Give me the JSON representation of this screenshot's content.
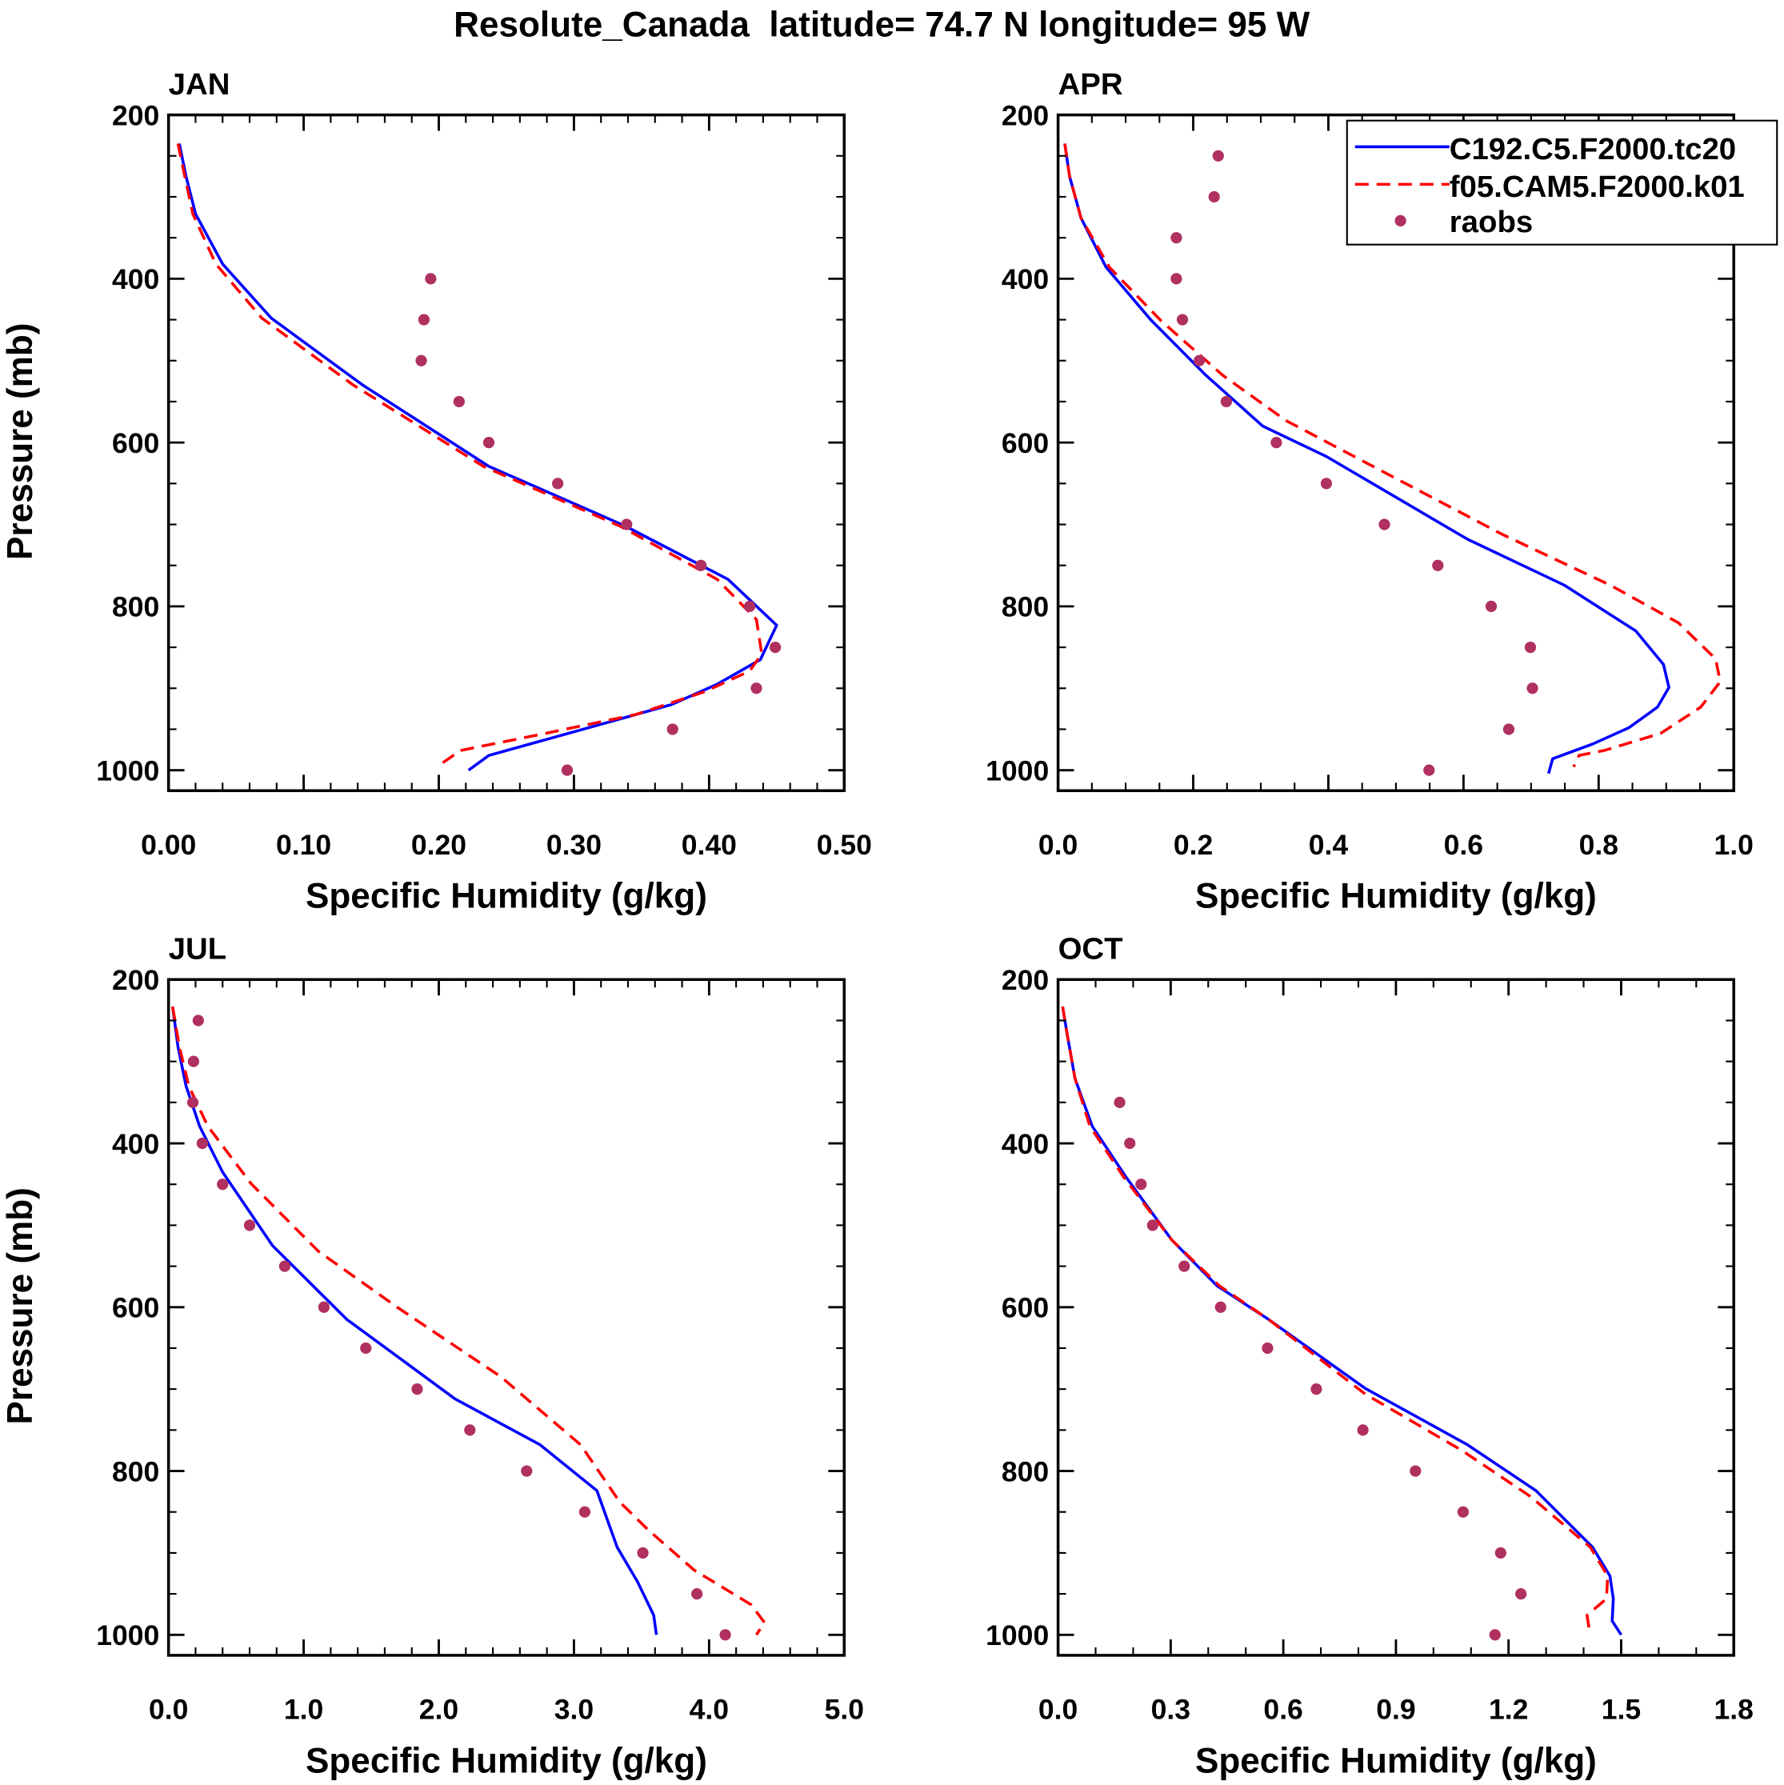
{
  "chart_data": {
    "title": "Resolute_Canada  latitude= 74.7 N longitude= 95 W",
    "legend": {
      "placement": "top-right of APR panel",
      "entries": [
        {
          "name": "C192.C5.F2000.tc20",
          "style": "solid",
          "color": "#0000ff"
        },
        {
          "name": "f05.CAM5.F2000.k01",
          "style": "dashed",
          "color": "#ff0000"
        },
        {
          "name": "raobs",
          "style": "marker",
          "color": "#b03060"
        }
      ]
    },
    "panels": [
      {
        "type": "line",
        "title": "JAN",
        "xlabel": "Specific Humidity (g/kg)",
        "ylabel": "Pressure (mb)",
        "xlim": [
          0,
          0.5
        ],
        "xminor": 0.02,
        "xticks": [
          0,
          0.1,
          0.2,
          0.3,
          0.4,
          0.5
        ],
        "xticklabels": [
          "0.00",
          "0.10",
          "0.20",
          "0.30",
          "0.40",
          "0.50"
        ],
        "ylim": [
          200,
          1025
        ],
        "yticks": [
          200,
          400,
          600,
          800,
          1000
        ],
        "yticklabels": [
          "200",
          "400",
          "600",
          "800",
          "1000"
        ],
        "series": [
          {
            "name": "C192.C5.F2000.tc20",
            "x": [
              0.008,
              0.013,
              0.02,
              0.04,
              0.076,
              0.143,
              0.237,
              0.338,
              0.414,
              0.45,
              0.438,
              0.406,
              0.372,
              0.296,
              0.237,
              0.222
            ],
            "p": [
              235,
              275,
              321,
              382,
              448,
              529,
              629,
              702,
              767,
              823,
              865,
              895,
              920,
              955,
              982,
              1000
            ]
          },
          {
            "name": "f05.CAM5.F2000.k01",
            "x": [
              0.007,
              0.012,
              0.018,
              0.035,
              0.069,
              0.136,
              0.233,
              0.334,
              0.406,
              0.435,
              0.439,
              0.43,
              0.397,
              0.346,
              0.279,
              0.216,
              0.202
            ],
            "p": [
              235,
              275,
              321,
              382,
              448,
              529,
              629,
              702,
              767,
              816,
              858,
              879,
              904,
              932,
              955,
              976,
              992
            ]
          },
          {
            "name": "raobs",
            "x": [
              0.194,
              0.189,
              0.187,
              0.215,
              0.237,
              0.288,
              0.339,
              0.394,
              0.43,
              0.449,
              0.435,
              0.373,
              0.295
            ],
            "p": [
              400,
              450,
              500,
              550,
              600,
              650,
              700,
              750,
              800,
              850,
              900,
              950,
              1000
            ]
          }
        ]
      },
      {
        "type": "line",
        "title": "APR",
        "xlabel": "Specific Humidity (g/kg)",
        "ylabel": "",
        "xlim": [
          0,
          1.0
        ],
        "xminor": 0.05,
        "xticks": [
          0,
          0.2,
          0.4,
          0.6,
          0.8,
          1.0
        ],
        "xticklabels": [
          "0.0",
          "0.2",
          "0.4",
          "0.6",
          "0.8",
          "1.0"
        ],
        "ylim": [
          200,
          1025
        ],
        "yticks": [
          200,
          400,
          600,
          800,
          1000
        ],
        "yticklabels": [
          "200",
          "400",
          "600",
          "800",
          "1000"
        ],
        "series": [
          {
            "name": "C192.C5.F2000.tc20",
            "x": [
              0.01,
              0.017,
              0.034,
              0.071,
              0.138,
              0.219,
              0.303,
              0.397,
              0.606,
              0.749,
              0.855,
              0.896,
              0.904,
              0.887,
              0.845,
              0.791,
              0.732,
              0.726
            ],
            "p": [
              235,
              275,
              326,
              386,
              451,
              518,
              580,
              617,
              718,
              774,
              830,
              871,
              899,
              923,
              948,
              968,
              986,
              1004
            ]
          },
          {
            "name": "f05.CAM5.F2000.k01",
            "x": [
              0.01,
              0.017,
              0.034,
              0.076,
              0.152,
              0.244,
              0.337,
              0.438,
              0.657,
              0.817,
              0.918,
              0.973,
              0.98,
              0.951,
              0.892,
              0.808,
              0.771,
              0.763
            ],
            "p": [
              235,
              275,
              326,
              386,
              451,
              518,
              573,
              617,
              712,
              774,
              820,
              864,
              892,
              923,
              955,
              976,
              982,
              996
            ]
          },
          {
            "name": "raobs",
            "x": [
              0.237,
              0.231,
              0.175,
              0.175,
              0.184,
              0.209,
              0.249,
              0.323,
              0.397,
              0.483,
              0.562,
              0.641,
              0.699,
              0.702,
              0.667,
              0.549
            ],
            "p": [
              250,
              300,
              350,
              400,
              450,
              500,
              550,
              600,
              650,
              700,
              750,
              800,
              850,
              900,
              950,
              1000
            ]
          }
        ]
      },
      {
        "type": "line",
        "title": "JUL",
        "xlabel": "Specific Humidity (g/kg)",
        "ylabel": "Pressure (mb)",
        "xlim": [
          0,
          5.0
        ],
        "xminor": 0.2,
        "xticks": [
          0,
          1,
          2,
          3,
          4,
          5
        ],
        "xticklabels": [
          "0.0",
          "1.0",
          "2.0",
          "3.0",
          "4.0",
          "5.0"
        ],
        "ylim": [
          200,
          1025
        ],
        "yticks": [
          200,
          400,
          600,
          800,
          1000
        ],
        "yticklabels": [
          "200",
          "400",
          "600",
          "800",
          "1000"
        ],
        "series": [
          {
            "name": "C192.C5.F2000.tc20",
            "x": [
              0.03,
              0.07,
              0.13,
              0.23,
              0.4,
              0.77,
              1.32,
              2.12,
              2.75,
              3.17,
              3.32,
              3.47,
              3.59,
              3.61
            ],
            "p": [
              233,
              282,
              330,
              379,
              435,
              525,
              615,
              712,
              768,
              824,
              893,
              935,
              976,
              1000
            ]
          },
          {
            "name": "f05.CAM5.F2000.k01",
            "x": [
              0.03,
              0.08,
              0.15,
              0.29,
              0.61,
              1.11,
              1.7,
              2.46,
              3.05,
              3.34,
              3.55,
              3.89,
              4.31,
              4.41,
              4.35
            ],
            "p": [
              233,
              282,
              330,
              379,
              449,
              532,
              601,
              685,
              768,
              838,
              872,
              921,
              963,
              985,
              1000
            ]
          },
          {
            "name": "raobs",
            "x": [
              0.22,
              0.185,
              0.18,
              0.25,
              0.4,
              0.6,
              0.86,
              1.15,
              1.46,
              1.84,
              2.23,
              2.65,
              3.08,
              3.51,
              3.91,
              4.12
            ],
            "p": [
              250,
              300,
              350,
              400,
              450,
              500,
              550,
              600,
              650,
              700,
              750,
              800,
              850,
              900,
              950,
              1000
            ]
          }
        ]
      },
      {
        "type": "line",
        "title": "OCT",
        "xlabel": "Specific Humidity (g/kg)",
        "ylabel": "",
        "xlim": [
          0,
          1.8
        ],
        "xminor": 0.1,
        "xticks": [
          0,
          0.3,
          0.6,
          0.9,
          1.2,
          1.5,
          1.8
        ],
        "xticklabels": [
          "0.0",
          "0.3",
          "0.6",
          "0.9",
          "1.2",
          "1.5",
          "1.8"
        ],
        "ylim": [
          200,
          1025
        ],
        "yticks": [
          200,
          400,
          600,
          800,
          1000
        ],
        "yticklabels": [
          "200",
          "400",
          "600",
          "800",
          "1000"
        ],
        "series": [
          {
            "name": "C192.C5.F2000.tc20",
            "x": [
              0.012,
              0.024,
              0.045,
              0.091,
              0.182,
              0.303,
              0.424,
              0.561,
              0.818,
              1.091,
              1.273,
              1.424,
              1.47,
              1.479,
              1.476,
              1.5
            ],
            "p": [
              233,
              266,
              321,
              379,
              442,
              518,
              574,
              615,
              699,
              768,
              824,
              893,
              928,
              956,
              983,
              1000
            ]
          },
          {
            "name": "f05.CAM5.F2000.k01",
            "x": [
              0.012,
              0.024,
              0.045,
              0.085,
              0.176,
              0.303,
              0.43,
              0.561,
              0.818,
              1.076,
              1.258,
              1.418,
              1.464,
              1.461,
              1.409,
              1.415
            ],
            "p": [
              233,
              266,
              321,
              379,
              442,
              518,
              574,
              615,
              706,
              775,
              831,
              893,
              928,
              956,
              976,
              994
            ]
          },
          {
            "name": "raobs",
            "x": [
              0.164,
              0.191,
              0.221,
              0.252,
              0.336,
              0.433,
              0.558,
              0.688,
              0.812,
              0.952,
              1.079,
              1.179,
              1.233,
              1.164
            ],
            "p": [
              350,
              400,
              450,
              500,
              550,
              600,
              650,
              700,
              750,
              800,
              850,
              900,
              950,
              1000
            ]
          }
        ]
      }
    ]
  }
}
